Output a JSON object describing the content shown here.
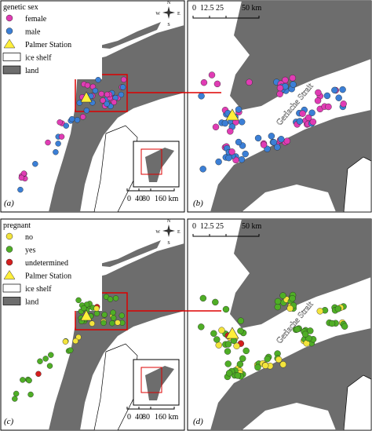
{
  "panels": [
    {
      "label": "(a)",
      "legend": {
        "title": "genetic sex",
        "items": [
          "female",
          "male",
          "Palmer Station",
          "ice shelf",
          "land"
        ]
      },
      "scale": [
        "0",
        "40",
        "80",
        "160 km"
      ],
      "compass": [
        "N",
        "E",
        "S",
        "W"
      ]
    },
    {
      "label": "(b)",
      "scale": [
        "0",
        "12.5",
        "25",
        "50 km"
      ],
      "annotation": "Gerlache Strait"
    },
    {
      "label": "(c)",
      "legend": {
        "title": "pregnant",
        "items": [
          "no",
          "yes",
          "undetermined",
          "Palmer Station",
          "ice shelf",
          "land"
        ]
      },
      "scale": [
        "0",
        "40",
        "80",
        "160 km"
      ],
      "compass": [
        "N",
        "E",
        "S",
        "W"
      ]
    },
    {
      "label": "(d)",
      "scale": [
        "0",
        "12.5",
        "25",
        "50 km"
      ],
      "annotation": "Gerlache Strait"
    }
  ]
}
